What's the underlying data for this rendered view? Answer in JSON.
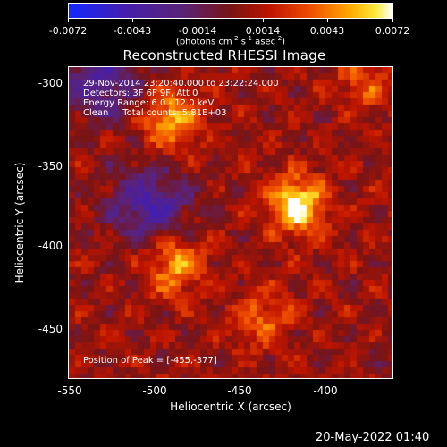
{
  "colorbar": {
    "ticks": [
      "-0.0072",
      "-0.0043",
      "-0.0014",
      "0.0014",
      "0.0043",
      "0.0072"
    ],
    "unit_parts": {
      "a": "(photons cm",
      "b": "-2",
      "c": " s",
      "d": "-1",
      "e": " asec",
      "f": "-2",
      "g": ")"
    }
  },
  "title": "Reconstructed RHESSI Image",
  "info": {
    "time": "29-Nov-2014 23:20:40.000 to 23:22:24.000",
    "detectors": "Detectors: 3F 6F 9F, Att 0",
    "energy": "Energy Range: 6.0 - 12.0 keV",
    "clean": "Clean     Total counts: 5.81E+03",
    "peak": "Position of Peak = [-455,-377]"
  },
  "axes": {
    "xlabel": "Heliocentric X (arcsec)",
    "ylabel": "Heliocentric Y (arcsec)",
    "xticks": [
      "-550",
      "-500",
      "-450",
      "-400"
    ],
    "yticks": [
      "-300",
      "-350",
      "-400",
      "-450"
    ]
  },
  "timestamp": "20-May-2022 01:40",
  "chart_data": {
    "type": "heatmap",
    "title": "Reconstructed RHESSI Image",
    "xlabel": "Heliocentric X (arcsec)",
    "ylabel": "Heliocentric Y (arcsec)",
    "xlim": [
      -555,
      -413
    ],
    "ylim": [
      -482,
      -290
    ],
    "colorbar_range": [
      -0.0072,
      0.0072
    ],
    "colormap": "blue-purple-red-yellow-white",
    "peak": [
      -455,
      -377
    ],
    "blobs": [
      {
        "x": -455,
        "y": -375,
        "w": 1.0
      },
      {
        "x": -510,
        "y": -322,
        "w": 0.75
      },
      {
        "x": -508,
        "y": -412,
        "w": 0.7
      },
      {
        "x": -385,
        "y": -372,
        "w": 0.6
      },
      {
        "x": -470,
        "y": -445,
        "w": 0.45
      },
      {
        "x": -425,
        "y": -300,
        "w": 0.4
      }
    ],
    "dark_regions": [
      {
        "x": -540,
        "y": -300,
        "w": 0.7
      },
      {
        "x": -520,
        "y": -375,
        "w": 0.8
      },
      {
        "x": -395,
        "y": -462,
        "w": 0.5
      }
    ]
  }
}
